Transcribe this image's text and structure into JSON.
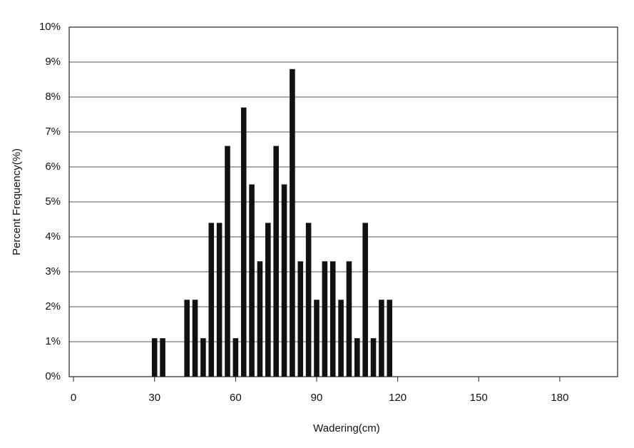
{
  "chart_data": {
    "type": "bar",
    "x_label": "Wadering(cm)",
    "y_label": "Percent Frequency(%)",
    "x": [
      30,
      33,
      42,
      45,
      48,
      51,
      54,
      57,
      60,
      63,
      66,
      69,
      72,
      75,
      78,
      81,
      84,
      87,
      90,
      93,
      96,
      99,
      102,
      105,
      108,
      111,
      114,
      117
    ],
    "values": [
      1.1,
      1.1,
      2.2,
      2.2,
      1.1,
      4.4,
      4.4,
      6.6,
      1.1,
      7.7,
      5.5,
      3.3,
      4.4,
      6.6,
      5.5,
      8.8,
      3.3,
      4.4,
      2.2,
      3.3,
      3.3,
      2.2,
      3.3,
      1.1,
      4.4,
      1.1,
      2.2,
      2.2
    ],
    "color": "#111111",
    "xlim": [
      -1.6,
      201.4
    ],
    "xticks": [
      0,
      30,
      60,
      90,
      120,
      150,
      180
    ],
    "ylim": [
      0,
      10
    ],
    "yticks": [
      {
        "value": 0,
        "label": "0%"
      },
      {
        "value": 1,
        "label": "1%"
      },
      {
        "value": 2,
        "label": "2%"
      },
      {
        "value": 3,
        "label": "3%"
      },
      {
        "value": 4,
        "label": "4%"
      },
      {
        "value": 5,
        "label": "5%"
      },
      {
        "value": 6,
        "label": "6%"
      },
      {
        "value": 7,
        "label": "7%"
      },
      {
        "value": 8,
        "label": "8%"
      },
      {
        "value": 9,
        "label": "9%"
      },
      {
        "value": 10,
        "label": "10%"
      }
    ],
    "grid": true
  }
}
